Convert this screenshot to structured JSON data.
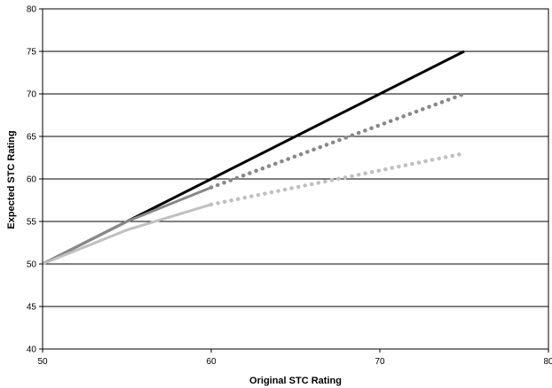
{
  "chart_data": {
    "type": "line",
    "xlabel": "Original STC Rating",
    "ylabel": "Expected STC Rating",
    "xlim": [
      50,
      80
    ],
    "ylim": [
      40,
      80
    ],
    "x_ticks": [
      "50",
      "60",
      "70",
      "80"
    ],
    "y_ticks": [
      "40",
      "45",
      "50",
      "55",
      "60",
      "65",
      "70",
      "75",
      "80"
    ],
    "grid": "horizontal",
    "legend": "none",
    "series": [
      {
        "color": "#000000",
        "style": "solid",
        "x": [
          50,
          75
        ],
        "y": [
          50,
          75
        ]
      },
      {
        "color": "#888888",
        "style": "solid",
        "x": [
          50,
          55,
          60
        ],
        "y": [
          50,
          55,
          59
        ]
      },
      {
        "color": "#888888",
        "style": "dotted",
        "x": [
          60,
          75
        ],
        "y": [
          59,
          70
        ]
      },
      {
        "color": "#c0c0c0",
        "style": "solid",
        "x": [
          50,
          55,
          60
        ],
        "y": [
          50,
          54,
          57
        ]
      },
      {
        "color": "#c0c0c0",
        "style": "dotted",
        "x": [
          60,
          75
        ],
        "y": [
          57,
          63
        ]
      }
    ]
  }
}
